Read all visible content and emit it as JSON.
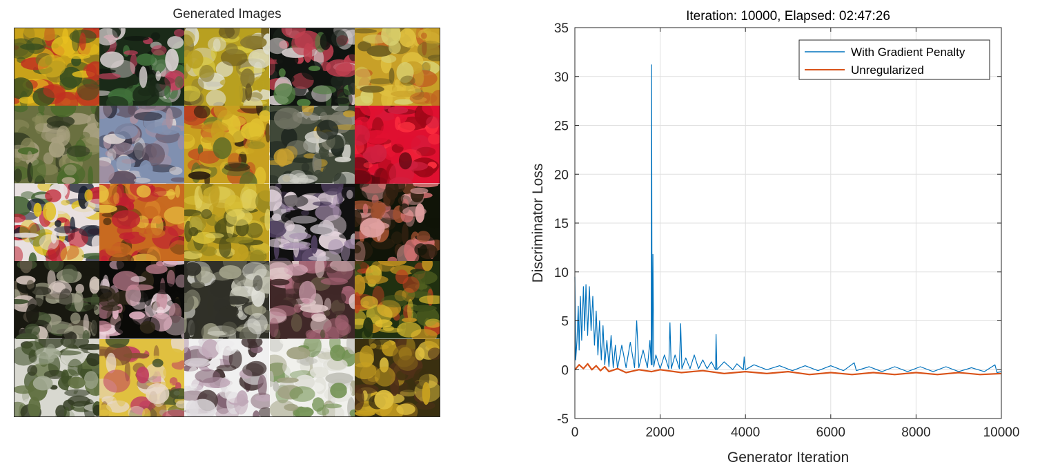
{
  "figure": {
    "left_title": "Generated Images",
    "tiles": [
      {
        "palette": [
          "#c9a21a",
          "#e8c020",
          "#7a6a20",
          "#c03020",
          "#3a5020"
        ]
      },
      {
        "palette": [
          "#1a2a18",
          "#c84060",
          "#40703a",
          "#d8d0d0",
          "#101810"
        ]
      },
      {
        "palette": [
          "#b8a020",
          "#d8c840",
          "#8a7a30",
          "#e0e0d0",
          "#605020"
        ]
      },
      {
        "palette": [
          "#101410",
          "#c04050",
          "#508040",
          "#d0c8c8",
          "#202820"
        ]
      },
      {
        "palette": [
          "#c8a028",
          "#e0c040",
          "#706020",
          "#c06020",
          "#d8d070"
        ]
      },
      {
        "palette": [
          "#6a7040",
          "#4a6a2a",
          "#a8a080",
          "#303820",
          "#8a8a5a"
        ]
      },
      {
        "palette": [
          "#8090b0",
          "#d8d0d0",
          "#303040",
          "#a890a0",
          "#605060"
        ]
      },
      {
        "palette": [
          "#c8a020",
          "#e0c030",
          "#5a6a28",
          "#c04020",
          "#302010"
        ]
      },
      {
        "palette": [
          "#404838",
          "#d0d0c8",
          "#808070",
          "#c8a030",
          "#202820"
        ]
      },
      {
        "palette": [
          "#e01030",
          "#a00818",
          "#ff3040",
          "#600810",
          "#d02040"
        ]
      },
      {
        "palette": [
          "#e8e0e0",
          "#c02030",
          "#e0c020",
          "#406030",
          "#1a2030"
        ]
      },
      {
        "palette": [
          "#c86a20",
          "#e09030",
          "#c02030",
          "#503010",
          "#e8c040"
        ]
      },
      {
        "palette": [
          "#c0a020",
          "#d8c038",
          "#8a8020",
          "#e0d060",
          "#505018"
        ]
      },
      {
        "palette": [
          "#101010",
          "#e8d8e0",
          "#a890b0",
          "#504060",
          "#c8c0c8"
        ]
      },
      {
        "palette": [
          "#101408",
          "#e0a0a0",
          "#a05030",
          "#d07070",
          "#302010"
        ]
      },
      {
        "palette": [
          "#181810",
          "#d8c8c0",
          "#a0a088",
          "#405030",
          "#605848"
        ]
      },
      {
        "palette": [
          "#0a0a08",
          "#e0b0c0",
          "#c08090",
          "#302818",
          "#f0d8e0"
        ]
      },
      {
        "palette": [
          "#303028",
          "#e0e0d8",
          "#a0a088",
          "#606050",
          "#c0c0b0"
        ]
      },
      {
        "palette": [
          "#402828",
          "#d0a0b0",
          "#a06070",
          "#605040",
          "#e0c8c8"
        ]
      },
      {
        "palette": [
          "#203010",
          "#c09020",
          "#506020",
          "#c04020",
          "#e0c030"
        ]
      },
      {
        "palette": [
          "#d8d8d0",
          "#405028",
          "#a0a890",
          "#607040",
          "#303820"
        ]
      },
      {
        "palette": [
          "#e0c040",
          "#c04060",
          "#e8d8c8",
          "#805030",
          "#40502a"
        ]
      },
      {
        "palette": [
          "#f0f0f0",
          "#e0dce0",
          "#806070",
          "#403030",
          "#c0a8b8"
        ]
      },
      {
        "palette": [
          "#f0f0ec",
          "#e0e0d8",
          "#709050",
          "#c0c0b8",
          "#a0a080"
        ]
      },
      {
        "palette": [
          "#3a3010",
          "#c8a020",
          "#e0c040",
          "#503018",
          "#806018"
        ]
      }
    ]
  },
  "chart_data": {
    "type": "line",
    "title": "Iteration: 10000, Elapsed: 02:47:26",
    "xlabel": "Generator Iteration",
    "ylabel": "Discriminator Loss",
    "xlim": [
      0,
      10000
    ],
    "ylim": [
      -5,
      35
    ],
    "xticks": [
      0,
      2000,
      4000,
      6000,
      8000,
      10000
    ],
    "yticks": [
      -5,
      0,
      5,
      10,
      15,
      20,
      25,
      30,
      35
    ],
    "xtick_labels": [
      "0",
      "2000",
      "4000",
      "6000",
      "8000",
      "10000"
    ],
    "ytick_labels": [
      "-5",
      "0",
      "5",
      "10",
      "15",
      "20",
      "25",
      "30",
      "35"
    ],
    "grid": true,
    "legend_position": "top-right",
    "series": [
      {
        "name": "With Gradient Penalty",
        "color": "#0072BD",
        "points": [
          [
            0,
            9.5
          ],
          [
            20,
            1.0
          ],
          [
            50,
            3.0
          ],
          [
            80,
            6.5
          ],
          [
            100,
            2.0
          ],
          [
            130,
            7.5
          ],
          [
            160,
            3.0
          ],
          [
            200,
            8.5
          ],
          [
            230,
            4.0
          ],
          [
            260,
            8.7
          ],
          [
            300,
            3.5
          ],
          [
            340,
            8.5
          ],
          [
            380,
            4.0
          ],
          [
            420,
            7.5
          ],
          [
            460,
            2.5
          ],
          [
            500,
            6.0
          ],
          [
            540,
            1.5
          ],
          [
            580,
            5.0
          ],
          [
            620,
            1.0
          ],
          [
            660,
            4.5
          ],
          [
            700,
            0.5
          ],
          [
            750,
            3.0
          ],
          [
            800,
            0.3
          ],
          [
            850,
            3.5
          ],
          [
            900,
            0.2
          ],
          [
            950,
            2.5
          ],
          [
            1000,
            0.1
          ],
          [
            1100,
            2.5
          ],
          [
            1200,
            0.2
          ],
          [
            1300,
            2.8
          ],
          [
            1400,
            0.2
          ],
          [
            1450,
            5.0
          ],
          [
            1500,
            0.2
          ],
          [
            1600,
            2.0
          ],
          [
            1700,
            0.2
          ],
          [
            1760,
            3.0
          ],
          [
            1790,
            0.5
          ],
          [
            1800,
            31.2
          ],
          [
            1810,
            0.5
          ],
          [
            1830,
            11.8
          ],
          [
            1850,
            0.3
          ],
          [
            1900,
            1.5
          ],
          [
            2000,
            0.1
          ],
          [
            2100,
            1.5
          ],
          [
            2200,
            0.1
          ],
          [
            2230,
            4.8
          ],
          [
            2260,
            0.1
          ],
          [
            2350,
            1.5
          ],
          [
            2450,
            0.1
          ],
          [
            2480,
            4.7
          ],
          [
            2510,
            0.1
          ],
          [
            2600,
            1.2
          ],
          [
            2700,
            0.1
          ],
          [
            2800,
            1.5
          ],
          [
            2900,
            0.1
          ],
          [
            3000,
            1.0
          ],
          [
            3100,
            0.1
          ],
          [
            3200,
            0.8
          ],
          [
            3300,
            0.0
          ],
          [
            3310,
            3.6
          ],
          [
            3330,
            0.0
          ],
          [
            3500,
            0.8
          ],
          [
            3700,
            0.0
          ],
          [
            3800,
            0.6
          ],
          [
            3950,
            0.0
          ],
          [
            3970,
            1.3
          ],
          [
            4000,
            0.0
          ],
          [
            4200,
            0.5
          ],
          [
            4500,
            0.0
          ],
          [
            4800,
            0.4
          ],
          [
            5100,
            -0.1
          ],
          [
            5400,
            0.4
          ],
          [
            5700,
            -0.1
          ],
          [
            6000,
            0.4
          ],
          [
            6300,
            -0.1
          ],
          [
            6550,
            0.7
          ],
          [
            6600,
            -0.1
          ],
          [
            6900,
            0.3
          ],
          [
            7200,
            -0.2
          ],
          [
            7500,
            0.3
          ],
          [
            7800,
            -0.2
          ],
          [
            8100,
            0.3
          ],
          [
            8400,
            -0.2
          ],
          [
            8700,
            0.3
          ],
          [
            9000,
            -0.2
          ],
          [
            9300,
            0.2
          ],
          [
            9600,
            -0.2
          ],
          [
            9850,
            0.5
          ],
          [
            9900,
            -0.3
          ],
          [
            10000,
            -0.2
          ]
        ]
      },
      {
        "name": "Unregularized",
        "color": "#D95319",
        "points": [
          [
            0,
            0.0
          ],
          [
            100,
            0.5
          ],
          [
            200,
            0.1
          ],
          [
            300,
            0.6
          ],
          [
            400,
            0.0
          ],
          [
            500,
            0.4
          ],
          [
            600,
            -0.1
          ],
          [
            700,
            0.3
          ],
          [
            800,
            -0.2
          ],
          [
            1000,
            0.1
          ],
          [
            1200,
            -0.3
          ],
          [
            1500,
            0.0
          ],
          [
            1800,
            -0.2
          ],
          [
            2000,
            0.0
          ],
          [
            2500,
            -0.3
          ],
          [
            3000,
            -0.1
          ],
          [
            3500,
            -0.4
          ],
          [
            4000,
            -0.2
          ],
          [
            4500,
            -0.4
          ],
          [
            5000,
            -0.2
          ],
          [
            5500,
            -0.5
          ],
          [
            6000,
            -0.3
          ],
          [
            6500,
            -0.5
          ],
          [
            7000,
            -0.3
          ],
          [
            7500,
            -0.5
          ],
          [
            8000,
            -0.3
          ],
          [
            8500,
            -0.5
          ],
          [
            9000,
            -0.3
          ],
          [
            9500,
            -0.5
          ],
          [
            10000,
            -0.4
          ]
        ]
      }
    ]
  }
}
